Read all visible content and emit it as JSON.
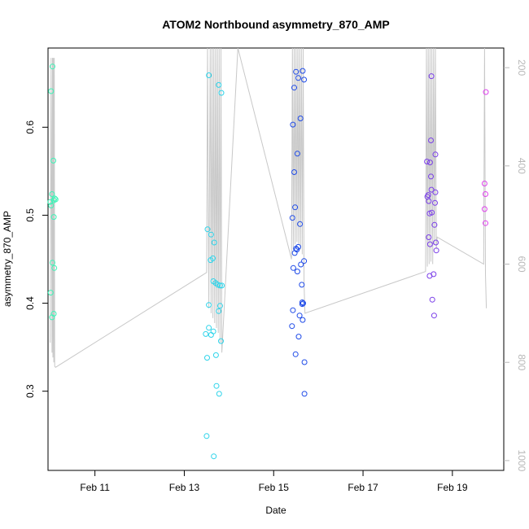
{
  "chart_data": {
    "type": "scatter",
    "title": "ATOM2 Northbound asymmetry_870_AMP",
    "xlabel": "Date",
    "ylabel": "asymmetry_870_AMP",
    "x_ticks": [
      {
        "value": 11,
        "label": "Feb 11"
      },
      {
        "value": 13,
        "label": "Feb 13"
      },
      {
        "value": 15,
        "label": "Feb 15"
      },
      {
        "value": 17,
        "label": "Feb 17"
      },
      {
        "value": 19,
        "label": "Feb 19"
      }
    ],
    "y_ticks": [
      0.3,
      0.4,
      0.5,
      0.6
    ],
    "y2_ticks": [
      200,
      400,
      600,
      800,
      1000
    ],
    "xlim": [
      9.95,
      20.15
    ],
    "ylim": [
      0.21,
      0.69
    ],
    "y2lim": [
      1020,
      160
    ],
    "grid": false,
    "points": [
      {
        "x": 10.02,
        "y": 0.641,
        "color": "#3df5b8"
      },
      {
        "x": 10.05,
        "y": 0.669,
        "color": "#3df5b8"
      },
      {
        "x": 10.07,
        "y": 0.562,
        "color": "#3df5b8"
      },
      {
        "x": 10.04,
        "y": 0.524,
        "color": "#3df5b8"
      },
      {
        "x": 10.1,
        "y": 0.519,
        "color": "#3df5b8"
      },
      {
        "x": 10.12,
        "y": 0.518,
        "color": "#3df5b8"
      },
      {
        "x": 10.0,
        "y": 0.515,
        "color": "#3df5b8"
      },
      {
        "x": 10.02,
        "y": 0.511,
        "color": "#3df5b8"
      },
      {
        "x": 10.08,
        "y": 0.517,
        "color": "#3df5b8"
      },
      {
        "x": 10.08,
        "y": 0.498,
        "color": "#3df5b8"
      },
      {
        "x": 10.05,
        "y": 0.446,
        "color": "#3df5b8"
      },
      {
        "x": 10.09,
        "y": 0.44,
        "color": "#3df5b8"
      },
      {
        "x": 10.01,
        "y": 0.412,
        "color": "#3df5b8"
      },
      {
        "x": 10.08,
        "y": 0.388,
        "color": "#3df5b8"
      },
      {
        "x": 10.04,
        "y": 0.384,
        "color": "#3df5b8"
      },
      {
        "x": 13.55,
        "y": 0.659,
        "color": "#2ed4ea"
      },
      {
        "x": 13.77,
        "y": 0.648,
        "color": "#2ed4ea"
      },
      {
        "x": 13.83,
        "y": 0.639,
        "color": "#2ed4ea"
      },
      {
        "x": 13.52,
        "y": 0.484,
        "color": "#2ed4ea"
      },
      {
        "x": 13.6,
        "y": 0.478,
        "color": "#2ed4ea"
      },
      {
        "x": 13.67,
        "y": 0.469,
        "color": "#2ed4ea"
      },
      {
        "x": 13.64,
        "y": 0.451,
        "color": "#2ed4ea"
      },
      {
        "x": 13.59,
        "y": 0.449,
        "color": "#2ed4ea"
      },
      {
        "x": 13.65,
        "y": 0.425,
        "color": "#2ed4ea"
      },
      {
        "x": 13.7,
        "y": 0.423,
        "color": "#2ed4ea"
      },
      {
        "x": 13.75,
        "y": 0.421,
        "color": "#2ed4ea"
      },
      {
        "x": 13.8,
        "y": 0.42,
        "color": "#2ed4ea"
      },
      {
        "x": 13.84,
        "y": 0.42,
        "color": "#2ed4ea"
      },
      {
        "x": 13.55,
        "y": 0.398,
        "color": "#2ed4ea"
      },
      {
        "x": 13.8,
        "y": 0.397,
        "color": "#2ed4ea"
      },
      {
        "x": 13.77,
        "y": 0.391,
        "color": "#2ed4ea"
      },
      {
        "x": 13.55,
        "y": 0.372,
        "color": "#2ed4ea"
      },
      {
        "x": 13.65,
        "y": 0.368,
        "color": "#2ed4ea"
      },
      {
        "x": 13.48,
        "y": 0.365,
        "color": "#2ed4ea"
      },
      {
        "x": 13.6,
        "y": 0.364,
        "color": "#2ed4ea"
      },
      {
        "x": 13.82,
        "y": 0.357,
        "color": "#2ed4ea"
      },
      {
        "x": 13.71,
        "y": 0.341,
        "color": "#2ed4ea"
      },
      {
        "x": 13.51,
        "y": 0.338,
        "color": "#2ed4ea"
      },
      {
        "x": 13.72,
        "y": 0.306,
        "color": "#2ed4ea"
      },
      {
        "x": 13.78,
        "y": 0.297,
        "color": "#2ed4ea"
      },
      {
        "x": 13.5,
        "y": 0.249,
        "color": "#2ed4ea"
      },
      {
        "x": 13.66,
        "y": 0.226,
        "color": "#2ed4ea"
      },
      {
        "x": 15.5,
        "y": 0.663,
        "color": "#1f4be8"
      },
      {
        "x": 15.65,
        "y": 0.664,
        "color": "#1f4be8"
      },
      {
        "x": 15.55,
        "y": 0.656,
        "color": "#1f4be8"
      },
      {
        "x": 15.68,
        "y": 0.654,
        "color": "#1f4be8"
      },
      {
        "x": 15.46,
        "y": 0.645,
        "color": "#1f4be8"
      },
      {
        "x": 15.6,
        "y": 0.61,
        "color": "#1f4be8"
      },
      {
        "x": 15.43,
        "y": 0.603,
        "color": "#1f4be8"
      },
      {
        "x": 15.53,
        "y": 0.57,
        "color": "#1f4be8"
      },
      {
        "x": 15.46,
        "y": 0.549,
        "color": "#1f4be8"
      },
      {
        "x": 15.48,
        "y": 0.509,
        "color": "#1f4be8"
      },
      {
        "x": 15.42,
        "y": 0.497,
        "color": "#1f4be8"
      },
      {
        "x": 15.59,
        "y": 0.49,
        "color": "#1f4be8"
      },
      {
        "x": 15.55,
        "y": 0.464,
        "color": "#1f4be8"
      },
      {
        "x": 15.5,
        "y": 0.462,
        "color": "#1f4be8"
      },
      {
        "x": 15.52,
        "y": 0.461,
        "color": "#1f4be8"
      },
      {
        "x": 15.47,
        "y": 0.457,
        "color": "#1f4be8"
      },
      {
        "x": 15.68,
        "y": 0.448,
        "color": "#1f4be8"
      },
      {
        "x": 15.61,
        "y": 0.444,
        "color": "#1f4be8"
      },
      {
        "x": 15.44,
        "y": 0.44,
        "color": "#1f4be8"
      },
      {
        "x": 15.53,
        "y": 0.436,
        "color": "#1f4be8"
      },
      {
        "x": 15.63,
        "y": 0.421,
        "color": "#1f4be8"
      },
      {
        "x": 15.64,
        "y": 0.401,
        "color": "#1f4be8"
      },
      {
        "x": 15.66,
        "y": 0.4,
        "color": "#1f4be8"
      },
      {
        "x": 15.64,
        "y": 0.399,
        "color": "#1f4be8"
      },
      {
        "x": 15.43,
        "y": 0.392,
        "color": "#1f4be8"
      },
      {
        "x": 15.58,
        "y": 0.386,
        "color": "#1f4be8"
      },
      {
        "x": 15.65,
        "y": 0.381,
        "color": "#1f4be8"
      },
      {
        "x": 15.41,
        "y": 0.374,
        "color": "#1f4be8"
      },
      {
        "x": 15.56,
        "y": 0.362,
        "color": "#1f4be8"
      },
      {
        "x": 15.49,
        "y": 0.342,
        "color": "#1f4be8"
      },
      {
        "x": 15.69,
        "y": 0.333,
        "color": "#1f4be8"
      },
      {
        "x": 15.69,
        "y": 0.297,
        "color": "#1f4be8"
      },
      {
        "x": 18.53,
        "y": 0.658,
        "color": "#7a3ee8"
      },
      {
        "x": 18.52,
        "y": 0.585,
        "color": "#7a3ee8"
      },
      {
        "x": 18.62,
        "y": 0.569,
        "color": "#7a3ee8"
      },
      {
        "x": 18.43,
        "y": 0.561,
        "color": "#7a3ee8"
      },
      {
        "x": 18.5,
        "y": 0.56,
        "color": "#7a3ee8"
      },
      {
        "x": 18.52,
        "y": 0.544,
        "color": "#7a3ee8"
      },
      {
        "x": 18.53,
        "y": 0.529,
        "color": "#7a3ee8"
      },
      {
        "x": 18.62,
        "y": 0.526,
        "color": "#7a3ee8"
      },
      {
        "x": 18.46,
        "y": 0.523,
        "color": "#7a3ee8"
      },
      {
        "x": 18.44,
        "y": 0.521,
        "color": "#7a3ee8"
      },
      {
        "x": 18.47,
        "y": 0.516,
        "color": "#7a3ee8"
      },
      {
        "x": 18.61,
        "y": 0.514,
        "color": "#7a3ee8"
      },
      {
        "x": 18.49,
        "y": 0.502,
        "color": "#7a3ee8"
      },
      {
        "x": 18.54,
        "y": 0.503,
        "color": "#7a3ee8"
      },
      {
        "x": 18.6,
        "y": 0.489,
        "color": "#7a3ee8"
      },
      {
        "x": 18.47,
        "y": 0.475,
        "color": "#7a3ee8"
      },
      {
        "x": 18.63,
        "y": 0.469,
        "color": "#7a3ee8"
      },
      {
        "x": 18.5,
        "y": 0.467,
        "color": "#7a3ee8"
      },
      {
        "x": 18.64,
        "y": 0.46,
        "color": "#7a3ee8"
      },
      {
        "x": 18.58,
        "y": 0.433,
        "color": "#7a3ee8"
      },
      {
        "x": 18.49,
        "y": 0.431,
        "color": "#7a3ee8"
      },
      {
        "x": 18.55,
        "y": 0.404,
        "color": "#7a3ee8"
      },
      {
        "x": 18.59,
        "y": 0.386,
        "color": "#7a3ee8"
      },
      {
        "x": 19.75,
        "y": 0.64,
        "color": "#e040ee"
      },
      {
        "x": 19.72,
        "y": 0.536,
        "color": "#e040ee"
      },
      {
        "x": 19.74,
        "y": 0.524,
        "color": "#e040ee"
      },
      {
        "x": 19.72,
        "y": 0.507,
        "color": "#e040ee"
      },
      {
        "x": 19.74,
        "y": 0.491,
        "color": "#e040ee"
      }
    ],
    "line_series": {
      "color": "#c8c8c8",
      "axis": "right",
      "note_free": true,
      "x": [
        10.0,
        10.02,
        10.04,
        10.05,
        10.06,
        10.07,
        10.08,
        10.09,
        10.1,
        10.12,
        13.5,
        13.52,
        13.55,
        13.58,
        13.6,
        13.62,
        13.64,
        13.66,
        13.68,
        13.7,
        13.72,
        13.74,
        13.76,
        13.78,
        13.8,
        13.82,
        13.84,
        14.2,
        15.4,
        15.42,
        15.44,
        15.46,
        15.48,
        15.5,
        15.52,
        15.54,
        15.56,
        15.58,
        15.6,
        15.62,
        15.64,
        15.66,
        15.68,
        15.7,
        18.4,
        18.42,
        18.44,
        18.46,
        18.48,
        18.5,
        18.52,
        18.54,
        18.56,
        18.58,
        18.6,
        18.62,
        18.64,
        18.66,
        19.7,
        19.72,
        19.74,
        19.76
      ],
      "y": [
        760,
        180,
        780,
        180,
        790,
        180,
        800,
        180,
        808,
        810,
        617,
        160,
        690,
        160,
        700,
        160,
        710,
        160,
        720,
        160,
        730,
        160,
        740,
        160,
        760,
        160,
        780,
        160,
        590,
        160,
        570,
        160,
        560,
        160,
        555,
        160,
        560,
        160,
        570,
        160,
        580,
        160,
        640,
        700,
        615,
        160,
        605,
        160,
        600,
        160,
        595,
        160,
        600,
        160,
        560,
        160,
        570,
        545,
        600,
        160,
        620,
        690
      ]
    }
  }
}
